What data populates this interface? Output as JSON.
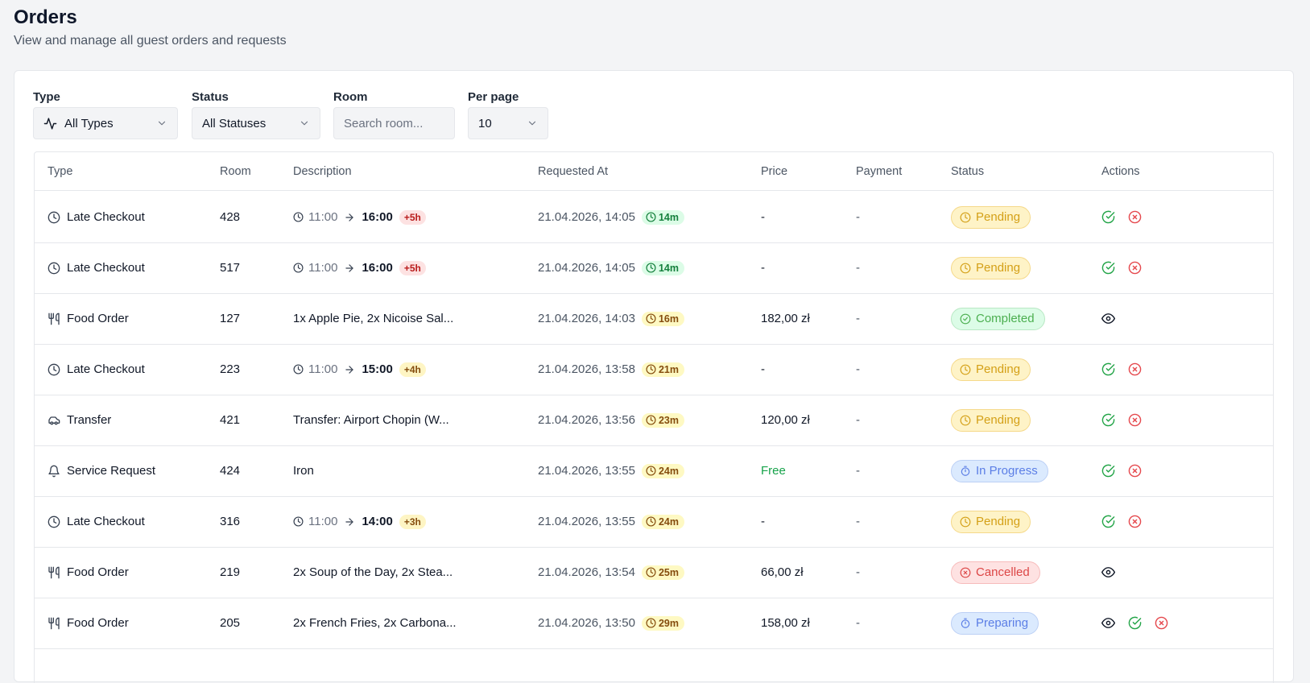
{
  "header": {
    "title": "Orders",
    "subtitle": "View and manage all guest orders and requests"
  },
  "filters": {
    "type": {
      "label": "Type",
      "value": "All Types",
      "icon": "activity-icon"
    },
    "status": {
      "label": "Status",
      "value": "All Statuses"
    },
    "room": {
      "label": "Room",
      "placeholder": "Search room..."
    },
    "per_page": {
      "label": "Per page",
      "value": "10"
    }
  },
  "table": {
    "columns": [
      "Type",
      "Room",
      "Description",
      "Requested At",
      "Price",
      "Payment",
      "Status",
      "Actions"
    ],
    "rows": [
      {
        "type": "Late Checkout",
        "icon": "clock",
        "room": "428",
        "desc_kind": "checkout",
        "from": "11:00",
        "to": "16:00",
        "extra": "+5h",
        "extra_color": "red",
        "requested": "21.04.2026, 14:05",
        "ago": "14m",
        "ago_color": "green",
        "price": "-",
        "payment": "-",
        "status": "Pending",
        "status_kind": "pending",
        "actions": [
          "approve",
          "reject"
        ]
      },
      {
        "type": "Late Checkout",
        "icon": "clock",
        "room": "517",
        "desc_kind": "checkout",
        "from": "11:00",
        "to": "16:00",
        "extra": "+5h",
        "extra_color": "red",
        "requested": "21.04.2026, 14:05",
        "ago": "14m",
        "ago_color": "green",
        "price": "-",
        "payment": "-",
        "status": "Pending",
        "status_kind": "pending",
        "actions": [
          "approve",
          "reject"
        ]
      },
      {
        "type": "Food Order",
        "icon": "utensils",
        "room": "127",
        "desc_kind": "text",
        "desc": "1x Apple Pie, 2x Nicoise Sal...",
        "requested": "21.04.2026, 14:03",
        "ago": "16m",
        "ago_color": "yellow",
        "price": "182,00 zł",
        "payment": "-",
        "status": "Completed",
        "status_kind": "completed",
        "actions": [
          "view"
        ]
      },
      {
        "type": "Late Checkout",
        "icon": "clock",
        "room": "223",
        "desc_kind": "checkout",
        "from": "11:00",
        "to": "15:00",
        "extra": "+4h",
        "extra_color": "yellow",
        "requested": "21.04.2026, 13:58",
        "ago": "21m",
        "ago_color": "yellow",
        "price": "-",
        "payment": "-",
        "status": "Pending",
        "status_kind": "pending",
        "actions": [
          "approve",
          "reject"
        ]
      },
      {
        "type": "Transfer",
        "icon": "car",
        "room": "421",
        "desc_kind": "text",
        "desc": "Transfer: Airport Chopin (W...",
        "requested": "21.04.2026, 13:56",
        "ago": "23m",
        "ago_color": "yellow",
        "price": "120,00 zł",
        "payment": "-",
        "status": "Pending",
        "status_kind": "pending",
        "actions": [
          "approve",
          "reject"
        ]
      },
      {
        "type": "Service Request",
        "icon": "bell",
        "room": "424",
        "desc_kind": "text",
        "desc": "Iron",
        "requested": "21.04.2026, 13:55",
        "ago": "24m",
        "ago_color": "yellow",
        "price": "Free",
        "payment": "-",
        "status": "In Progress",
        "status_kind": "progress",
        "actions": [
          "approve",
          "reject"
        ]
      },
      {
        "type": "Late Checkout",
        "icon": "clock",
        "room": "316",
        "desc_kind": "checkout",
        "from": "11:00",
        "to": "14:00",
        "extra": "+3h",
        "extra_color": "yellow",
        "requested": "21.04.2026, 13:55",
        "ago": "24m",
        "ago_color": "yellow",
        "price": "-",
        "payment": "-",
        "status": "Pending",
        "status_kind": "pending",
        "actions": [
          "approve",
          "reject"
        ]
      },
      {
        "type": "Food Order",
        "icon": "utensils",
        "room": "219",
        "desc_kind": "text",
        "desc": "2x Soup of the Day, 2x Stea...",
        "requested": "21.04.2026, 13:54",
        "ago": "25m",
        "ago_color": "yellow",
        "price": "66,00 zł",
        "payment": "-",
        "status": "Cancelled",
        "status_kind": "cancelled",
        "actions": [
          "view"
        ]
      },
      {
        "type": "Food Order",
        "icon": "utensils",
        "room": "205",
        "desc_kind": "text",
        "desc": "2x French Fries, 2x Carbona...",
        "requested": "21.04.2026, 13:50",
        "ago": "29m",
        "ago_color": "yellow",
        "price": "158,00 zł",
        "payment": "-",
        "status": "Preparing",
        "status_kind": "progress",
        "actions": [
          "view",
          "approve",
          "reject"
        ]
      }
    ]
  },
  "colors": {
    "approve": "#22a447",
    "reject": "#e5484d",
    "pending": "#d4a017",
    "completed": "#4caf50",
    "progress": "#5b7ee6",
    "cancelled": "#dc4646"
  }
}
